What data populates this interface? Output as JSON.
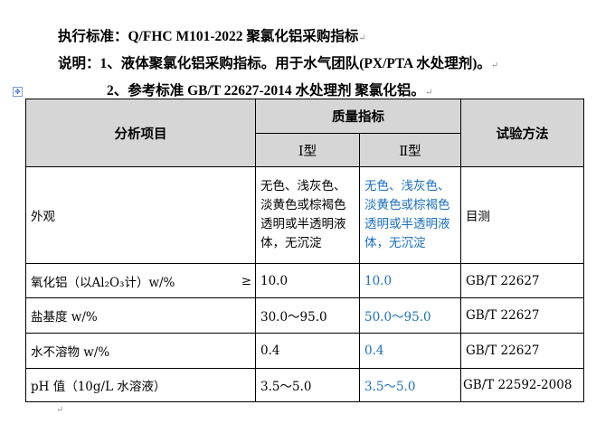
{
  "header": {
    "line1": "执行标准：Q/FHC M101-2022 聚氯化铝采购指标",
    "line2": "说明：1、液体聚氯化铝采购指标。用于水气团队(PX/PTA 水处理剂)。",
    "line3": "2、参考标准 GB/T 22627-2014 水处理剂 聚氯化铝。"
  },
  "table": {
    "col_item": "分析项目",
    "col_quality": "质量指标",
    "col_type1": "Ⅰ型",
    "col_type2": "Ⅱ型",
    "col_method": "试验方法",
    "rows": [
      {
        "item": "外观",
        "type1": "无色、浅灰色、淡黄色或棕褐色透明或半透明液体，无沉淀",
        "type2": "无色、浅灰色、淡黄色或棕褐色透明或半透明液体，无沉淀",
        "method": "目测"
      },
      {
        "item": "氧化铝（以Al₂O₃计）w/%",
        "qualifier": "≥",
        "type1": "10.0",
        "type2": "10.0",
        "method": "GB/T 22627"
      },
      {
        "item": "盐基度 w/%",
        "type1": "30.0～95.0",
        "type2": "50.0～95.0",
        "method": "GB/T 22627"
      },
      {
        "item": "水不溶物 w/%",
        "type1": "0.4",
        "type2": "0.4",
        "method": "GB/T 22627"
      },
      {
        "item": "pH 值（10g/L 水溶液）",
        "type1": "3.5～5.0",
        "type2": "3.5～5.0",
        "method": "GB/T 22592-2008"
      }
    ]
  },
  "colors": {
    "type2_text": "#1a6fc0",
    "header_bg": "#d6d6d6"
  }
}
